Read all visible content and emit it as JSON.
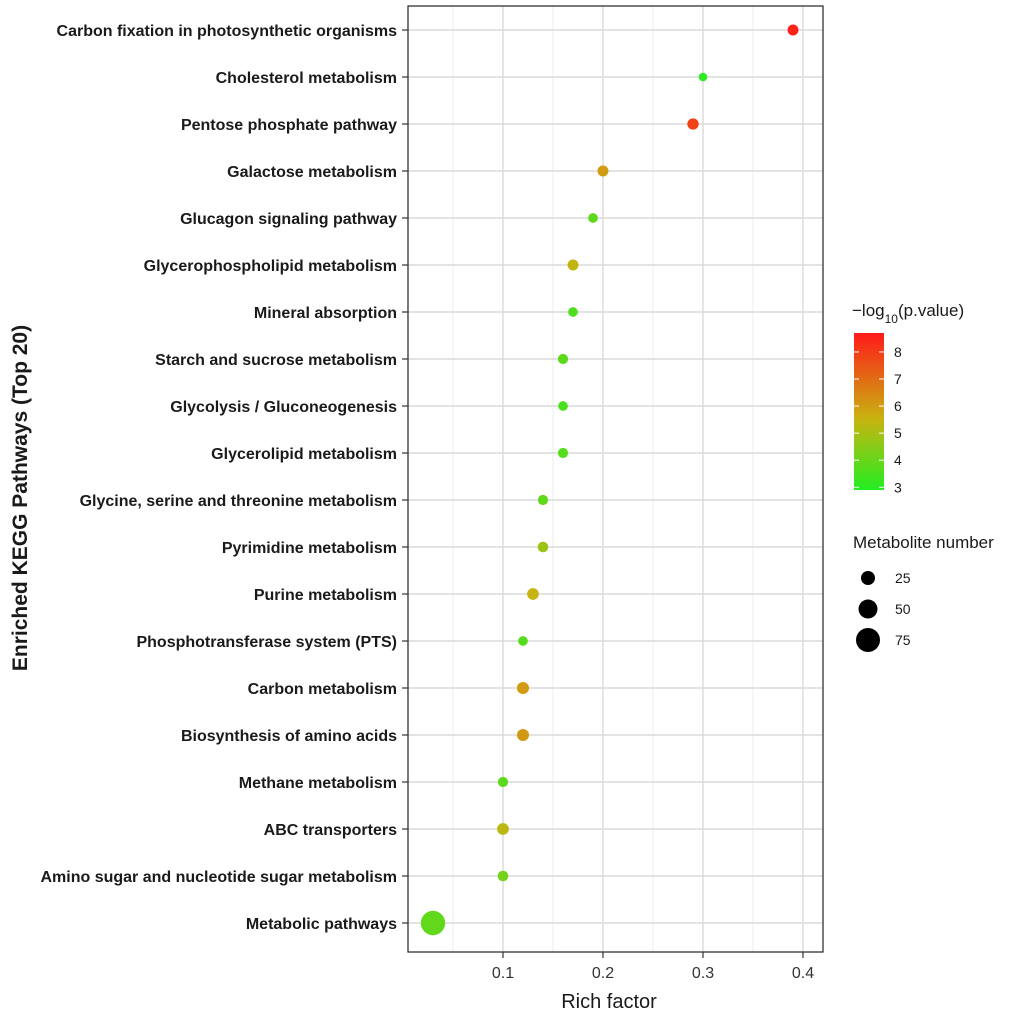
{
  "chart_data": {
    "type": "scatter",
    "title": "",
    "xlabel": "Rich factor",
    "ylabel": "Enriched KEGG Pathways (Top 20)",
    "xlim": [
      0.005,
      0.42
    ],
    "x_ticks": [
      0.1,
      0.2,
      0.3,
      0.4
    ],
    "x_tick_labels": [
      "0.1",
      "0.2",
      "0.3",
      "0.4"
    ],
    "grid": true,
    "categories": [
      "Carbon fixation in photosynthetic organisms",
      "Cholesterol metabolism",
      "Pentose phosphate pathway",
      "Galactose metabolism",
      "Glucagon signaling pathway",
      "Glycerophospholipid metabolism",
      "Mineral absorption",
      "Starch and sucrose metabolism",
      "Glycolysis / Gluconeogenesis",
      "Glycerolipid metabolism",
      "Glycine, serine and threonine metabolism",
      "Pyrimidine metabolism",
      "Purine metabolism",
      "Phosphotransferase system (PTS)",
      "Carbon metabolism",
      "Biosynthesis of amino acids",
      "Methane metabolism",
      "ABC transporters",
      "Amino sugar and nucleotide sugar metabolism",
      "Metabolic pathways"
    ],
    "points": [
      {
        "pathway": "Carbon fixation in photosynthetic organisms",
        "rich_factor": 0.39,
        "neg_log10_p": 8.5,
        "count": 8
      },
      {
        "pathway": "Cholesterol metabolism",
        "rich_factor": 0.3,
        "neg_log10_p": 3.1,
        "count": 3
      },
      {
        "pathway": "Pentose phosphate pathway",
        "rich_factor": 0.29,
        "neg_log10_p": 7.9,
        "count": 9
      },
      {
        "pathway": "Galactose metabolism",
        "rich_factor": 0.2,
        "neg_log10_p": 6.0,
        "count": 8
      },
      {
        "pathway": "Glucagon signaling pathway",
        "rich_factor": 0.19,
        "neg_log10_p": 3.8,
        "count": 5
      },
      {
        "pathway": "Glycerophospholipid metabolism",
        "rich_factor": 0.17,
        "neg_log10_p": 5.4,
        "count": 8
      },
      {
        "pathway": "Mineral absorption",
        "rich_factor": 0.17,
        "neg_log10_p": 3.6,
        "count": 5
      },
      {
        "pathway": "Starch and sucrose metabolism",
        "rich_factor": 0.16,
        "neg_log10_p": 3.8,
        "count": 6
      },
      {
        "pathway": "Glycolysis / Gluconeogenesis",
        "rich_factor": 0.16,
        "neg_log10_p": 3.5,
        "count": 5
      },
      {
        "pathway": "Glycerolipid metabolism",
        "rich_factor": 0.16,
        "neg_log10_p": 3.7,
        "count": 6
      },
      {
        "pathway": "Glycine, serine and threonine metabolism",
        "rich_factor": 0.14,
        "neg_log10_p": 3.9,
        "count": 6
      },
      {
        "pathway": "Pyrimidine metabolism",
        "rich_factor": 0.14,
        "neg_log10_p": 4.8,
        "count": 7
      },
      {
        "pathway": "Purine metabolism",
        "rich_factor": 0.13,
        "neg_log10_p": 5.5,
        "count": 10
      },
      {
        "pathway": "Phosphotransferase system (PTS)",
        "rich_factor": 0.12,
        "neg_log10_p": 3.7,
        "count": 5
      },
      {
        "pathway": "Carbon metabolism",
        "rich_factor": 0.12,
        "neg_log10_p": 6.0,
        "count": 11
      },
      {
        "pathway": "Biosynthesis of amino acids",
        "rich_factor": 0.12,
        "neg_log10_p": 6.1,
        "count": 11
      },
      {
        "pathway": "Methane metabolism",
        "rich_factor": 0.1,
        "neg_log10_p": 3.8,
        "count": 6
      },
      {
        "pathway": "ABC transporters",
        "rich_factor": 0.1,
        "neg_log10_p": 5.3,
        "count": 10
      },
      {
        "pathway": "Amino sugar and nucleotide sugar metabolism",
        "rich_factor": 0.1,
        "neg_log10_p": 4.2,
        "count": 7
      },
      {
        "pathway": "Metabolic pathways",
        "rich_factor": 0.03,
        "neg_log10_p": 3.9,
        "count": 80
      }
    ],
    "color_legend": {
      "title_prefix": "−log",
      "title_sub": "10",
      "title_suffix": "(p.value)",
      "min": 2.9,
      "max": 8.7,
      "ticks": [
        3,
        4,
        5,
        6,
        7,
        8
      ],
      "low_color": "#22ee22",
      "mid_color": "#c8b410",
      "high_color": "#ff1a1a",
      "position": "right"
    },
    "size_legend": {
      "title": "Metabolite number",
      "values": [
        25,
        50,
        75
      ],
      "labels": [
        "25",
        "50",
        "75"
      ],
      "position": "right"
    }
  }
}
